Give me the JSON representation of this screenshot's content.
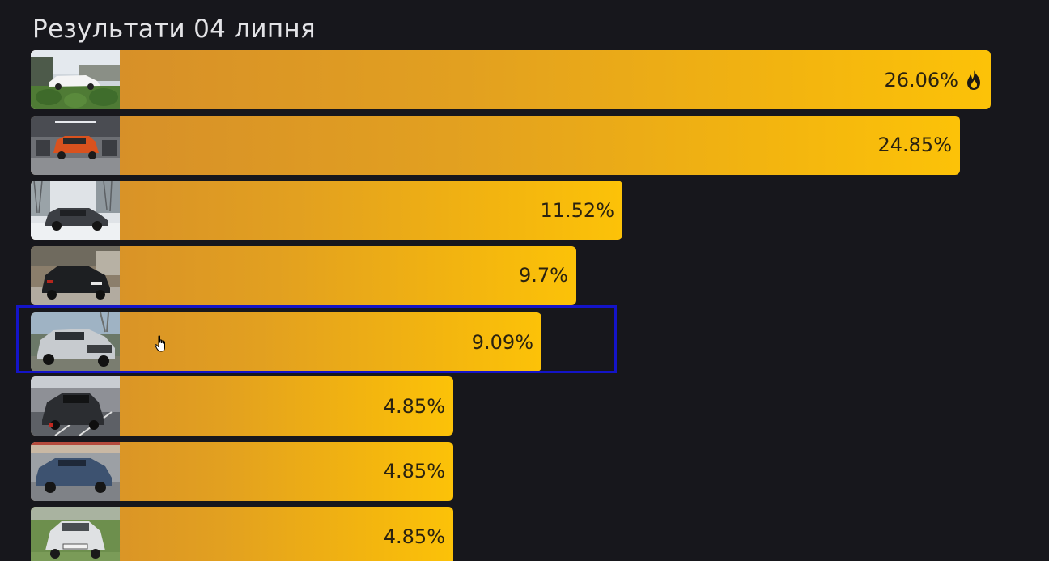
{
  "title": "Результати 04 липня",
  "results": [
    {
      "value": 26.06,
      "label": "26.06%",
      "hot": true,
      "icon": "fire-icon"
    },
    {
      "value": 24.85,
      "label": "24.85%"
    },
    {
      "value": 11.52,
      "label": "11.52%"
    },
    {
      "value": 9.7,
      "label": "9.7%"
    },
    {
      "value": 9.09,
      "label": "9.09%",
      "selected": true
    },
    {
      "value": 4.85,
      "label": "4.85%"
    },
    {
      "value": 4.85,
      "label": "4.85%"
    },
    {
      "value": 4.85,
      "label": "4.85%"
    }
  ],
  "colors": {
    "background": "#17171c",
    "bar_start": "#d48c2b",
    "bar_end": "#fcc208",
    "selection": "#1414c8",
    "text": "#2a2210"
  }
}
